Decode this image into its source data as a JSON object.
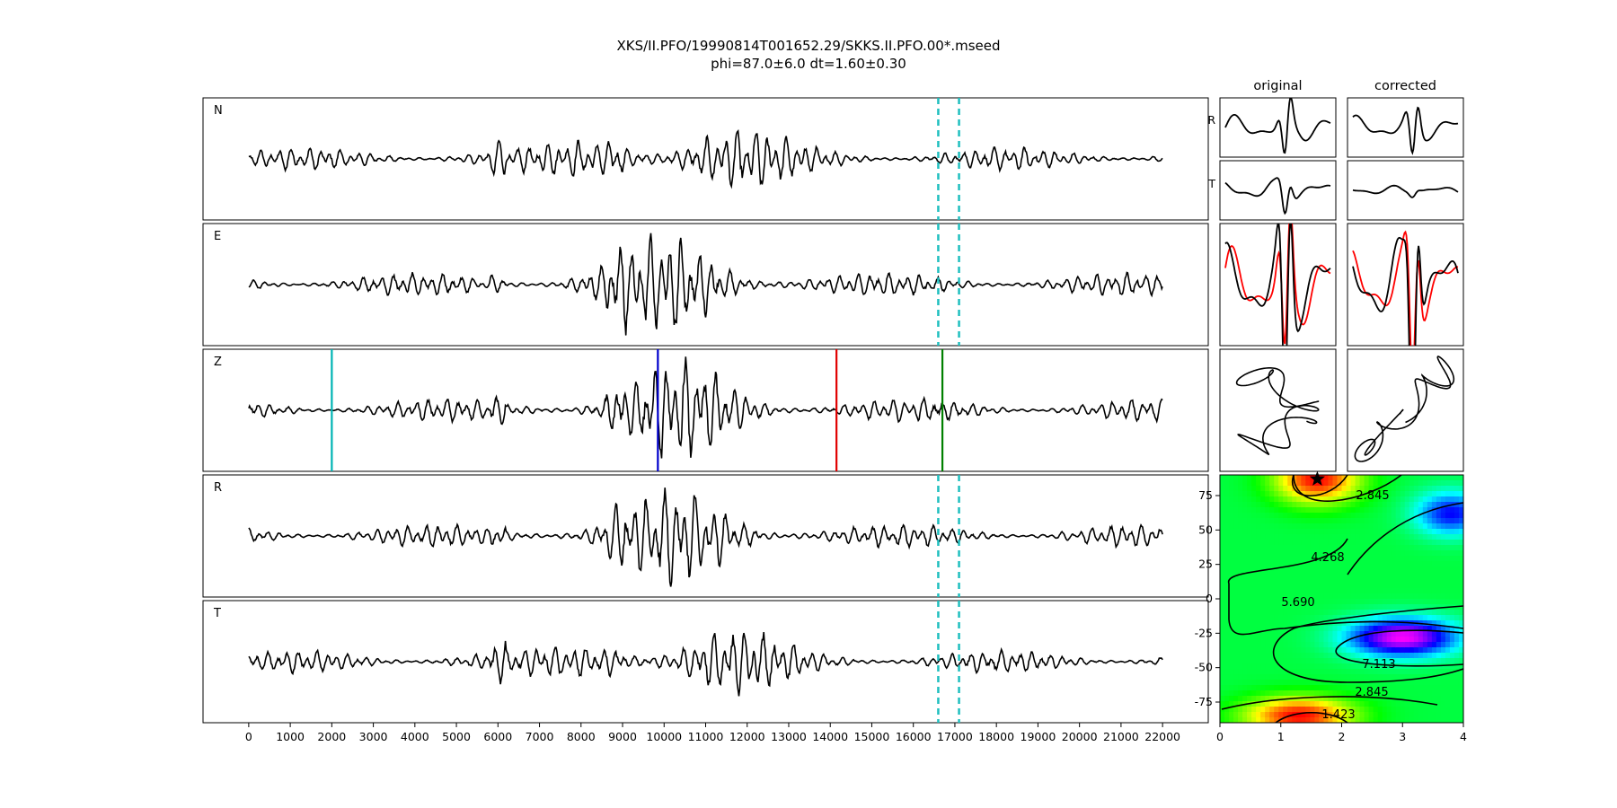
{
  "figure": {
    "title": "XKS/II.PFO/19990814T001652.29/SKKS.II.PFO.00*.mseed",
    "subtitle": "phi=87.0±6.0 dt=1.60±0.30"
  },
  "chart_data": [
    {
      "type": "line",
      "panel": "seismograms",
      "traces": [
        "N",
        "E",
        "Z",
        "R",
        "T"
      ],
      "x_ticks": [
        0,
        1000,
        2000,
        3000,
        4000,
        5000,
        6000,
        7000,
        8000,
        9000,
        10000,
        11000,
        12000,
        13000,
        14000,
        15000,
        16000,
        17000,
        18000,
        19000,
        20000,
        21000,
        22000
      ],
      "xlim": [
        -1100,
        23100
      ],
      "data_range": [
        0,
        22000
      ],
      "window_markers": {
        "lines": [
          16600,
          17100
        ],
        "color": "#1fbfbf",
        "traces": [
          "N",
          "E",
          "R",
          "T"
        ]
      },
      "phase_markers": [
        {
          "x": 2000,
          "color": "#00b4b4"
        },
        {
          "x": 9850,
          "color": "#0000cc"
        },
        {
          "x": 14150,
          "color": "#e00000"
        },
        {
          "x": 16700,
          "color": "#008000"
        }
      ],
      "envelope": {
        "peak_center": 10400,
        "noise_level": 0.22
      }
    },
    {
      "type": "line",
      "panel": "particle-waveforms",
      "columns": [
        "original",
        "corrected"
      ],
      "rows": [
        "R",
        "T",
        "overlay",
        "particle-motion"
      ],
      "series_colors": [
        "#000000",
        "#ff0000"
      ]
    },
    {
      "type": "heatmap",
      "panel": "error-surface",
      "xlim": [
        0,
        4
      ],
      "ylim": [
        -90,
        90
      ],
      "x_ticks": [
        0,
        1,
        2,
        3,
        4
      ],
      "y_ticks": [
        75,
        50,
        25,
        0,
        -25,
        -50,
        -75
      ],
      "contour_labels": [
        "1.423",
        "2.845",
        "4.268",
        "5.690",
        "7.113"
      ],
      "best_fit": {
        "dt": 1.6,
        "phi": 87.0
      }
    }
  ]
}
